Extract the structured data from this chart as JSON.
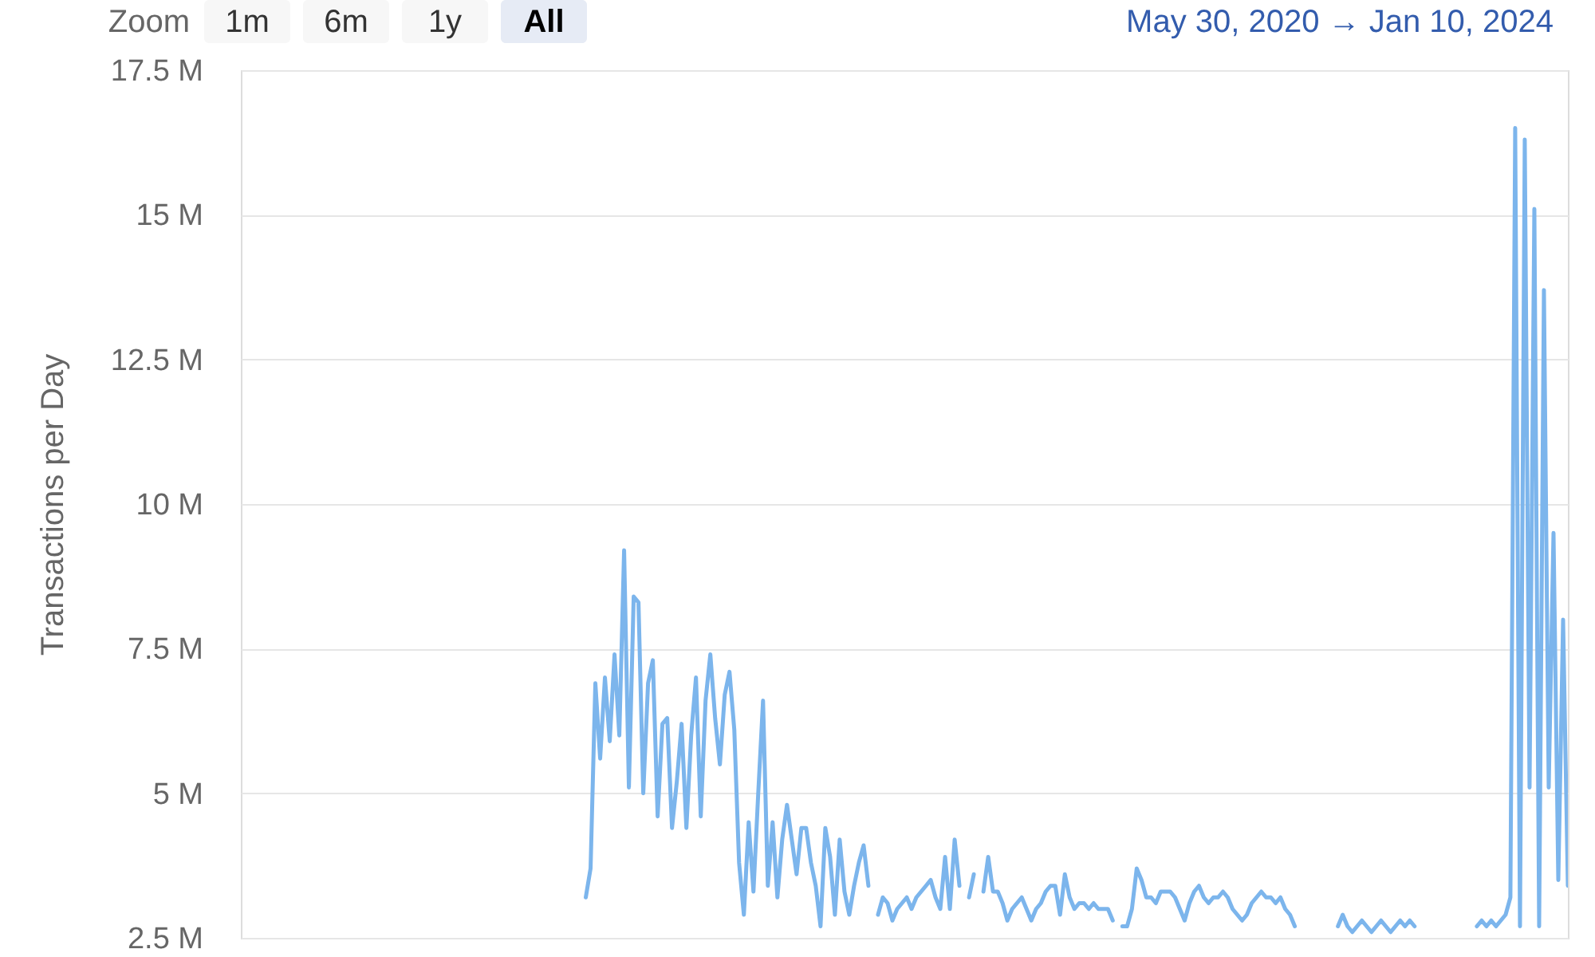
{
  "chart_data": {
    "type": "line",
    "ylabel": "Transactions per Day",
    "annotations": [
      "Zoom",
      "1m",
      "6m",
      "1y",
      "All",
      "May 30, 2020 → Jan 10, 2024"
    ],
    "color": "#7cb5ec",
    "grid": "y",
    "tick_labels": "y",
    "ylim": [
      2.5,
      17.5
    ],
    "yticks": [
      {
        "value": 2.5,
        "label": "2.5 M"
      },
      {
        "value": 5,
        "label": "5 M"
      },
      {
        "value": 7.5,
        "label": "7.5 M"
      },
      {
        "value": 10,
        "label": "10 M"
      },
      {
        "value": 12.5,
        "label": "12.5 M"
      },
      {
        "value": 15,
        "label": "15 M"
      },
      {
        "value": 17.5,
        "label": "17.5 M"
      }
    ],
    "categories": [
      null,
      null,
      null,
      null,
      null,
      null,
      null,
      null,
      null,
      null,
      null,
      null,
      null,
      null,
      null,
      null,
      null,
      null,
      null,
      null,
      null,
      null,
      null,
      null,
      null,
      null,
      null,
      null,
      null,
      null,
      null,
      null,
      null,
      null,
      null,
      null,
      null,
      null,
      null,
      null,
      null,
      null,
      null,
      null,
      null,
      null,
      null,
      null,
      null,
      null,
      null,
      null,
      null,
      null,
      null,
      null,
      null,
      null,
      null,
      null,
      null,
      null,
      null,
      null,
      null,
      null,
      null,
      null,
      null,
      null,
      null,
      null,
      null,
      null,
      null,
      null,
      null,
      null,
      null,
      null,
      null,
      null,
      null,
      null,
      null,
      null,
      null,
      null,
      null,
      null,
      null,
      null,
      null,
      null,
      null,
      null,
      null,
      null,
      null,
      null,
      null,
      null,
      null,
      null,
      null,
      null,
      null,
      null,
      null,
      null,
      null,
      null,
      null,
      null,
      null,
      null,
      null,
      null,
      null,
      null,
      null,
      null,
      null,
      null,
      null,
      null,
      null,
      null,
      null,
      null,
      null,
      null,
      null,
      null,
      null,
      null,
      null,
      null,
      null,
      null,
      null,
      null,
      null,
      null,
      null,
      null,
      null,
      null,
      null,
      null,
      null,
      null,
      null,
      null,
      null,
      null,
      null,
      null,
      null,
      null,
      null,
      null,
      null,
      null,
      null,
      null,
      null,
      null,
      null,
      null,
      null,
      null,
      null,
      null,
      null,
      null,
      null,
      null,
      null,
      null,
      null,
      null,
      null,
      null,
      null,
      null,
      null,
      null,
      null,
      null,
      null,
      null,
      null,
      null,
      null,
      null,
      null,
      null,
      null,
      null,
      null,
      null,
      null,
      null,
      null,
      null,
      null,
      null,
      null,
      null,
      null,
      null,
      null,
      null,
      null,
      null,
      null,
      null,
      null,
      null,
      null,
      null,
      null,
      null,
      null,
      null,
      null,
      null,
      null,
      null,
      null,
      null,
      null,
      null,
      null,
      null,
      null,
      null,
      null,
      null,
      null,
      null,
      null,
      null,
      null,
      null,
      null,
      null,
      null,
      null,
      null,
      null,
      null,
      null,
      null,
      null,
      null,
      null,
      null,
      null,
      null,
      null,
      null,
      null,
      null,
      null,
      null,
      null,
      null,
      null,
      null,
      null,
      null,
      null,
      null,
      null,
      null,
      null
    ],
    "values": [
      null,
      null,
      null,
      null,
      null,
      null,
      null,
      null,
      null,
      null,
      null,
      null,
      null,
      null,
      null,
      null,
      null,
      null,
      null,
      null,
      null,
      null,
      null,
      null,
      null,
      null,
      null,
      null,
      null,
      null,
      null,
      null,
      null,
      null,
      null,
      null,
      null,
      null,
      null,
      null,
      null,
      null,
      null,
      null,
      null,
      null,
      null,
      null,
      null,
      null,
      null,
      null,
      null,
      null,
      null,
      null,
      null,
      null,
      null,
      null,
      null,
      null,
      null,
      null,
      null,
      null,
      null,
      null,
      null,
      null,
      null,
      null,
      3.2,
      3.7,
      6.9,
      5.6,
      7.0,
      5.9,
      7.4,
      6.0,
      9.2,
      5.1,
      8.4,
      8.3,
      5.0,
      6.9,
      7.3,
      4.6,
      6.2,
      6.3,
      4.4,
      5.2,
      6.2,
      4.4,
      6.0,
      7.0,
      4.6,
      6.6,
      7.4,
      6.3,
      5.5,
      6.7,
      7.1,
      6.1,
      3.8,
      2.9,
      4.5,
      3.3,
      5.0,
      6.6,
      3.4,
      4.5,
      3.2,
      4.2,
      4.8,
      4.2,
      3.6,
      4.4,
      4.4,
      3.8,
      3.4,
      2.7,
      4.4,
      3.9,
      2.9,
      4.2,
      3.3,
      2.9,
      3.4,
      3.8,
      4.1,
      3.4,
      null,
      2.9,
      3.2,
      3.1,
      2.8,
      3.0,
      3.1,
      3.2,
      3.0,
      3.2,
      3.3,
      3.4,
      3.5,
      3.2,
      3.0,
      3.9,
      3.0,
      4.2,
      3.4,
      null,
      3.2,
      3.6,
      null,
      3.3,
      3.9,
      3.3,
      3.3,
      3.1,
      2.8,
      3.0,
      3.1,
      3.2,
      3.0,
      2.8,
      3.0,
      3.1,
      3.3,
      3.4,
      3.4,
      2.9,
      3.6,
      3.2,
      3.0,
      3.1,
      3.1,
      3.0,
      3.1,
      3.0,
      3.0,
      3.0,
      2.8,
      null,
      2.7,
      2.7,
      3.0,
      3.7,
      3.5,
      3.2,
      3.2,
      3.1,
      3.3,
      3.3,
      3.3,
      3.2,
      3.0,
      2.8,
      3.1,
      3.3,
      3.4,
      3.2,
      3.1,
      3.2,
      3.2,
      3.3,
      3.2,
      3.0,
      2.9,
      2.8,
      2.9,
      3.1,
      3.2,
      3.3,
      3.2,
      3.2,
      3.1,
      3.2,
      3.0,
      2.9,
      2.7,
      null,
      null,
      null,
      null,
      null,
      null,
      null,
      null,
      2.7,
      2.9,
      2.7,
      2.6,
      2.7,
      2.8,
      2.7,
      2.6,
      2.7,
      2.8,
      2.7,
      2.6,
      2.7,
      2.8,
      2.7,
      2.8,
      2.7,
      null,
      null,
      null,
      null,
      null,
      null,
      null,
      null,
      null,
      null,
      null,
      null,
      2.7,
      2.8,
      2.7,
      2.8,
      2.7,
      2.8,
      2.9,
      3.2,
      16.5,
      2.7,
      16.3,
      5.1,
      15.1,
      2.7,
      13.7,
      5.1,
      9.5,
      3.5,
      8.0,
      3.4
    ]
  }
}
